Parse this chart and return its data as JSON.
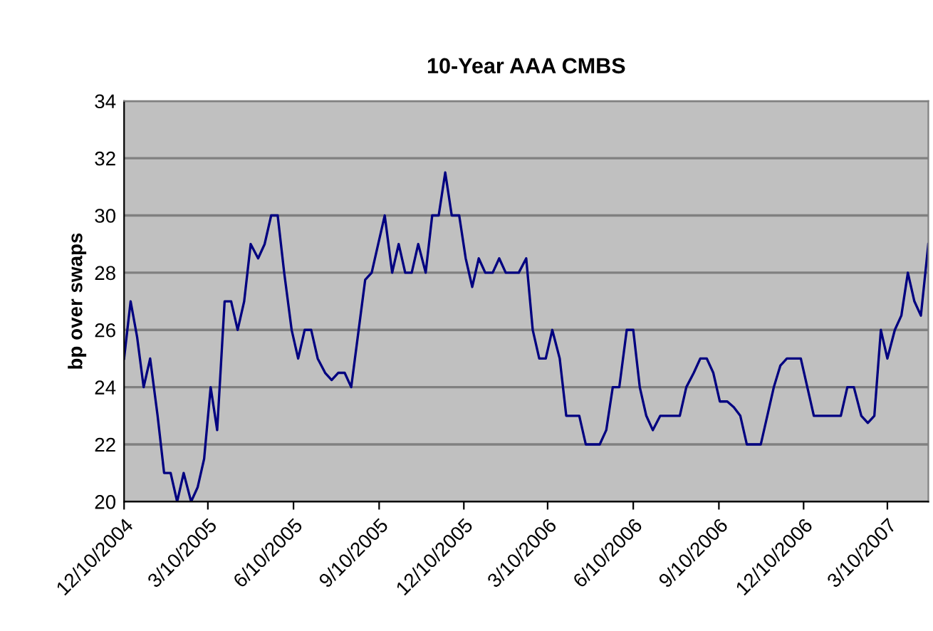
{
  "chart_data": {
    "type": "line",
    "title": "10-Year AAA CMBS",
    "ylabel": "bp over swaps",
    "x": [
      "2004-12-10",
      "2004-12-17",
      "2004-12-24",
      "2004-12-31",
      "2005-01-07",
      "2005-01-15",
      "2005-01-22",
      "2005-01-29",
      "2005-02-05",
      "2005-02-12",
      "2005-02-20",
      "2005-02-27",
      "2005-03-06",
      "2005-03-13",
      "2005-03-20",
      "2005-03-28",
      "2005-04-04",
      "2005-04-11",
      "2005-04-18",
      "2005-04-25",
      "2005-05-03",
      "2005-05-10",
      "2005-05-17",
      "2005-05-24",
      "2005-05-31",
      "2005-06-08",
      "2005-06-15",
      "2005-06-22",
      "2005-06-29",
      "2005-07-06",
      "2005-07-14",
      "2005-07-21",
      "2005-07-28",
      "2005-08-04",
      "2005-08-11",
      "2005-08-19",
      "2005-08-26",
      "2005-09-02",
      "2005-09-09",
      "2005-09-16",
      "2005-09-24",
      "2005-10-01",
      "2005-10-08",
      "2005-10-15",
      "2005-10-22",
      "2005-10-30",
      "2005-11-06",
      "2005-11-13",
      "2005-11-20",
      "2005-11-27",
      "2005-12-05",
      "2005-12-12",
      "2005-12-19",
      "2005-12-26",
      "2006-01-02",
      "2006-01-10",
      "2006-01-17",
      "2006-01-24",
      "2006-01-31",
      "2006-02-07",
      "2006-02-15",
      "2006-02-22",
      "2006-03-01",
      "2006-03-08",
      "2006-03-15",
      "2006-03-23",
      "2006-03-30",
      "2006-04-06",
      "2006-04-13",
      "2006-04-20",
      "2006-04-28",
      "2006-05-05",
      "2006-05-12",
      "2006-05-19",
      "2006-05-26",
      "2006-06-03",
      "2006-06-10",
      "2006-06-17",
      "2006-06-24",
      "2006-07-01",
      "2006-07-09",
      "2006-07-16",
      "2006-07-23",
      "2006-07-30",
      "2006-08-06",
      "2006-08-14",
      "2006-08-21",
      "2006-08-28",
      "2006-09-04",
      "2006-09-11",
      "2006-09-19",
      "2006-09-26",
      "2006-10-03",
      "2006-10-10",
      "2006-10-17",
      "2006-10-25",
      "2006-11-01",
      "2006-11-08",
      "2006-11-15",
      "2006-11-22",
      "2006-11-30",
      "2006-12-07",
      "2006-12-14",
      "2006-12-21",
      "2006-12-28",
      "2007-01-05",
      "2007-01-12",
      "2007-01-19",
      "2007-01-26",
      "2007-02-02",
      "2007-02-10",
      "2007-02-17",
      "2007-02-24",
      "2007-03-03",
      "2007-03-10",
      "2007-03-18",
      "2007-03-25",
      "2007-04-01",
      "2007-04-08",
      "2007-04-15",
      "2007-04-23"
    ],
    "series": [
      {
        "color": "#000080",
        "values": [
          25,
          27,
          25.75,
          24,
          25,
          23,
          21,
          21,
          20,
          21,
          20,
          20.5,
          21.5,
          24,
          22.5,
          27,
          27,
          26,
          27,
          29,
          28.5,
          29,
          30,
          30,
          28,
          26,
          25,
          26,
          26,
          25,
          24.5,
          24.25,
          24.5,
          24.5,
          24,
          26,
          27.75,
          28,
          29,
          30,
          28,
          29,
          28,
          28,
          29,
          28,
          30,
          30,
          31.5,
          30,
          30,
          28.5,
          27.5,
          28.5,
          28,
          28,
          28.5,
          28,
          28,
          28,
          28.5,
          26,
          25,
          25,
          26,
          25,
          23,
          23,
          23,
          22,
          22,
          22,
          22.5,
          24,
          24,
          26,
          26,
          24,
          23,
          22.5,
          23,
          23,
          23,
          23,
          24,
          24.5,
          25,
          25,
          24.5,
          23.5,
          23.5,
          23.3,
          23,
          22,
          22,
          22,
          23,
          24,
          24.75,
          25,
          25,
          25,
          24,
          23,
          23,
          23,
          23,
          23,
          24,
          24,
          23,
          22.75,
          23,
          26,
          25,
          26,
          26.5,
          28,
          27,
          26.5,
          29
        ]
      }
    ],
    "xlim": [
      "2004-12-10",
      "2007-04-23"
    ],
    "xticks": [
      {
        "value": "2004-12-10",
        "label": "12/10/2004"
      },
      {
        "value": "2005-03-10",
        "label": "3/10/2005"
      },
      {
        "value": "2005-06-10",
        "label": "6/10/2005"
      },
      {
        "value": "2005-09-10",
        "label": "9/10/2005"
      },
      {
        "value": "2005-12-10",
        "label": "12/10/2005"
      },
      {
        "value": "2006-03-10",
        "label": "3/10/2006"
      },
      {
        "value": "2006-06-10",
        "label": "6/10/2006"
      },
      {
        "value": "2006-09-10",
        "label": "9/10/2006"
      },
      {
        "value": "2006-12-10",
        "label": "12/10/2006"
      },
      {
        "value": "2007-03-10",
        "label": "3/10/2007"
      }
    ],
    "ylim": [
      20,
      34
    ],
    "yticks": [
      20,
      22,
      24,
      26,
      28,
      30,
      32,
      34
    ],
    "grid": "y",
    "legend": false,
    "marker": "none",
    "line_style": "solid"
  }
}
